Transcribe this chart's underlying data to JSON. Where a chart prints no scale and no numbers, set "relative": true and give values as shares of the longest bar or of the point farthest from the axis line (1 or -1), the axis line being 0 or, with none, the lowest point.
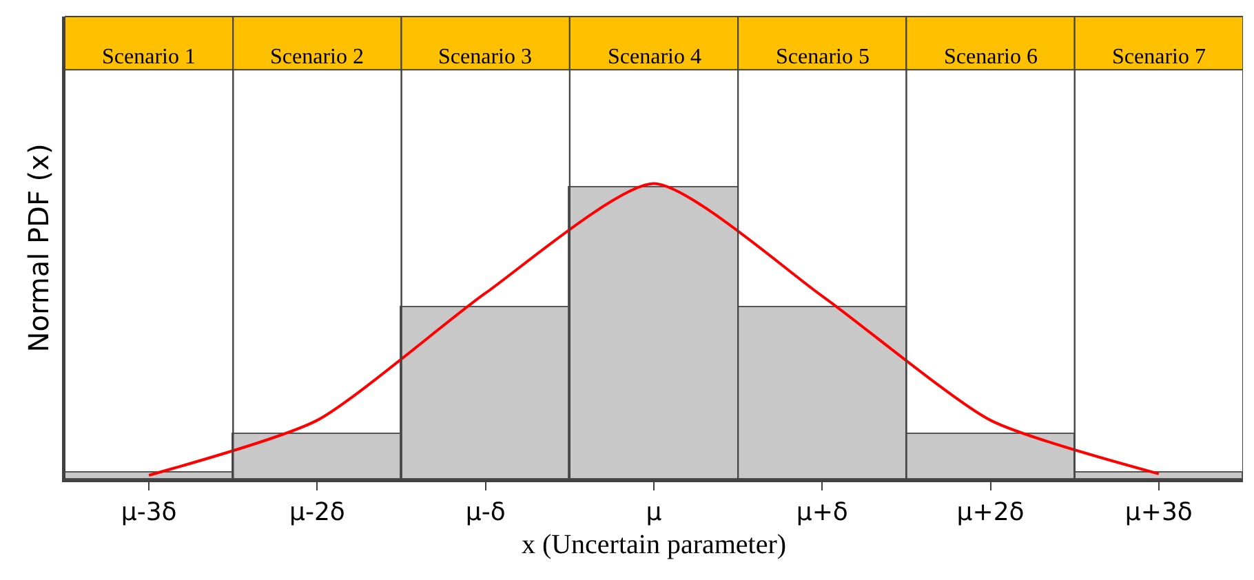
{
  "chart_data": {
    "type": "bar",
    "xlabel": "x (Uncertain parameter)",
    "ylabel": "Normal PDF (x)",
    "relative": true,
    "categories": [
      "μ-3δ",
      "μ-2δ",
      "μ-δ",
      "μ",
      "μ+δ",
      "μ+2δ",
      "μ+3δ"
    ],
    "series": [
      {
        "color": "#c8c8c8",
        "values": [
          0.023,
          0.153,
          0.583,
          0.986,
          0.583,
          0.153,
          0.023
        ]
      },
      {
        "type": "line",
        "color": "#ff0000",
        "values": [
          0.014,
          0.2,
          0.63,
          1,
          0.62,
          0.2,
          0.019
        ]
      }
    ],
    "annotations": [
      "Scenario 1",
      "Scenario 2",
      "Scenario 3",
      "Scenario 4",
      "Scenario 5",
      "Scenario 6",
      "Scenario 7"
    ],
    "marker": "none",
    "line_style": "solid"
  }
}
